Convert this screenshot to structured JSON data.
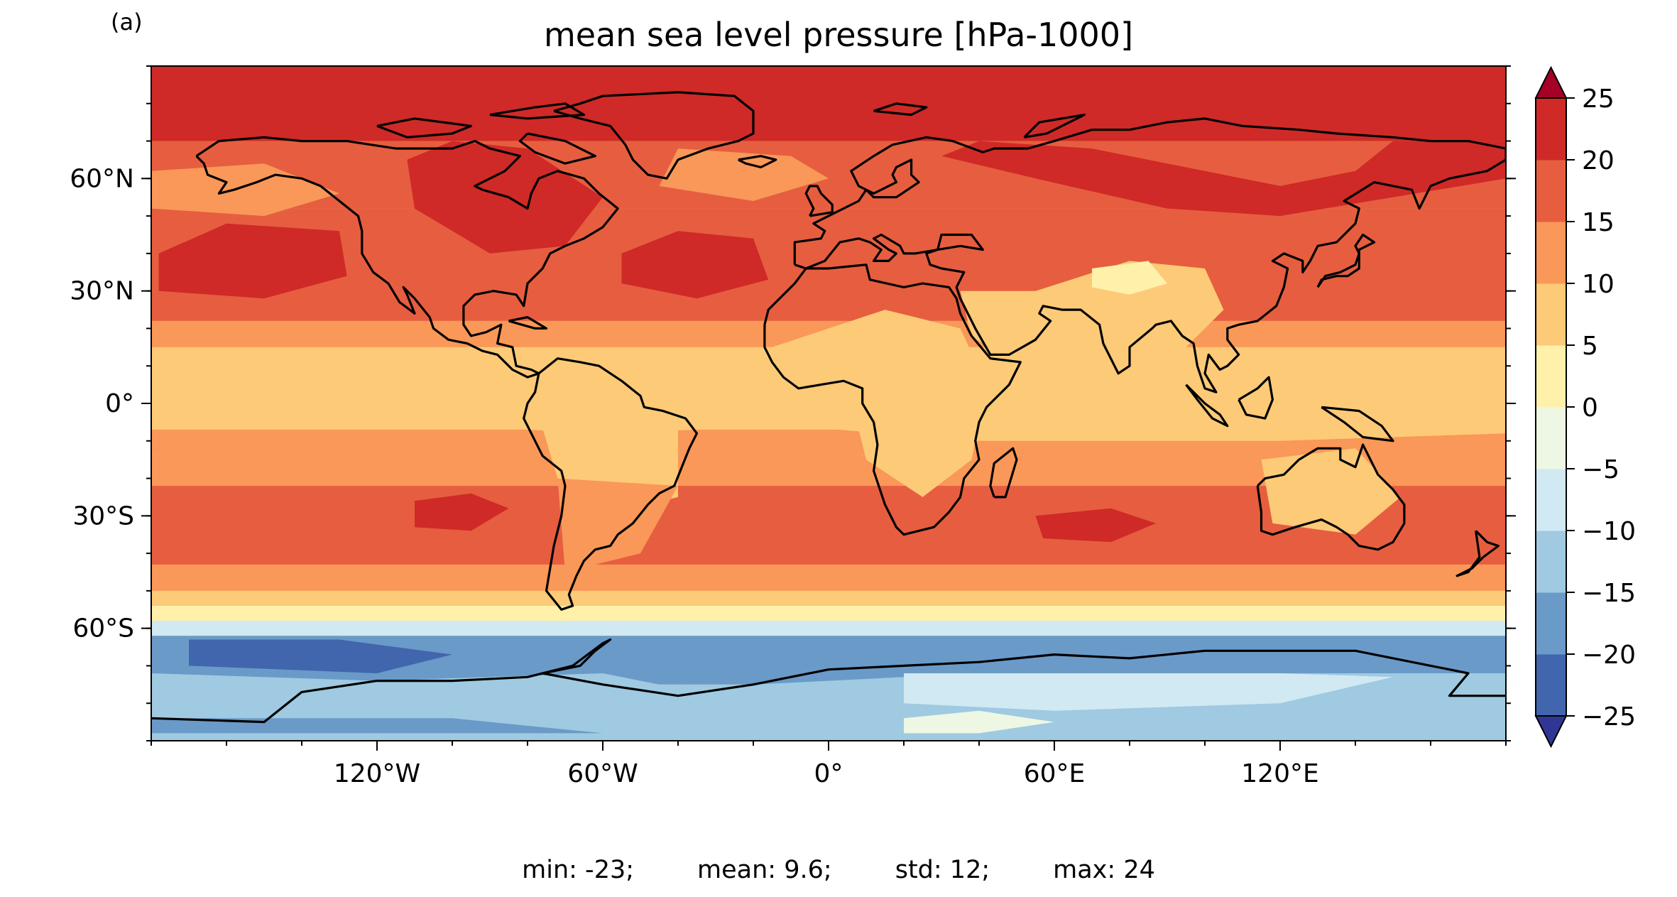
{
  "figure": {
    "panel_label": "(a)",
    "title": "mean sea level pressure [hPa-1000]",
    "stats": {
      "min": "min: -23;",
      "mean": "mean: 9.6;",
      "std": "std: 12;",
      "max": "max: 24"
    }
  },
  "map": {
    "projection": "plate carree",
    "lon_range": [
      -180,
      180
    ],
    "lat_range": [
      -90,
      90
    ],
    "x_ticks": [
      {
        "lon": -120,
        "label": "120°W"
      },
      {
        "lon": -60,
        "label": "60°W"
      },
      {
        "lon": 0,
        "label": "0°"
      },
      {
        "lon": 60,
        "label": "60°E"
      },
      {
        "lon": 120,
        "label": "120°E"
      }
    ],
    "y_ticks": [
      {
        "lat": 60,
        "label": "60°N"
      },
      {
        "lat": 30,
        "label": "30°N"
      },
      {
        "lat": 0,
        "label": "0°"
      },
      {
        "lat": -30,
        "label": "30°S"
      },
      {
        "lat": -60,
        "label": "60°S"
      }
    ],
    "coastlines": "black"
  },
  "colorbar": {
    "levels": [
      -25,
      -20,
      -15,
      -10,
      -5,
      0,
      5,
      10,
      15,
      20,
      25
    ],
    "tick_labels": [
      "−25",
      "−20",
      "−15",
      "−10",
      "−5",
      "0",
      "5",
      "10",
      "15",
      "20",
      "25"
    ],
    "colors": [
      "#4166ad",
      "#6a9ac8",
      "#9fcae1",
      "#d0e9f2",
      "#eef7e3",
      "#fff1aa",
      "#fdca78",
      "#f99858",
      "#e65e3f",
      "#cf2a27"
    ],
    "under_color": "#313695",
    "over_color": "#a50026",
    "extend": "both"
  }
}
